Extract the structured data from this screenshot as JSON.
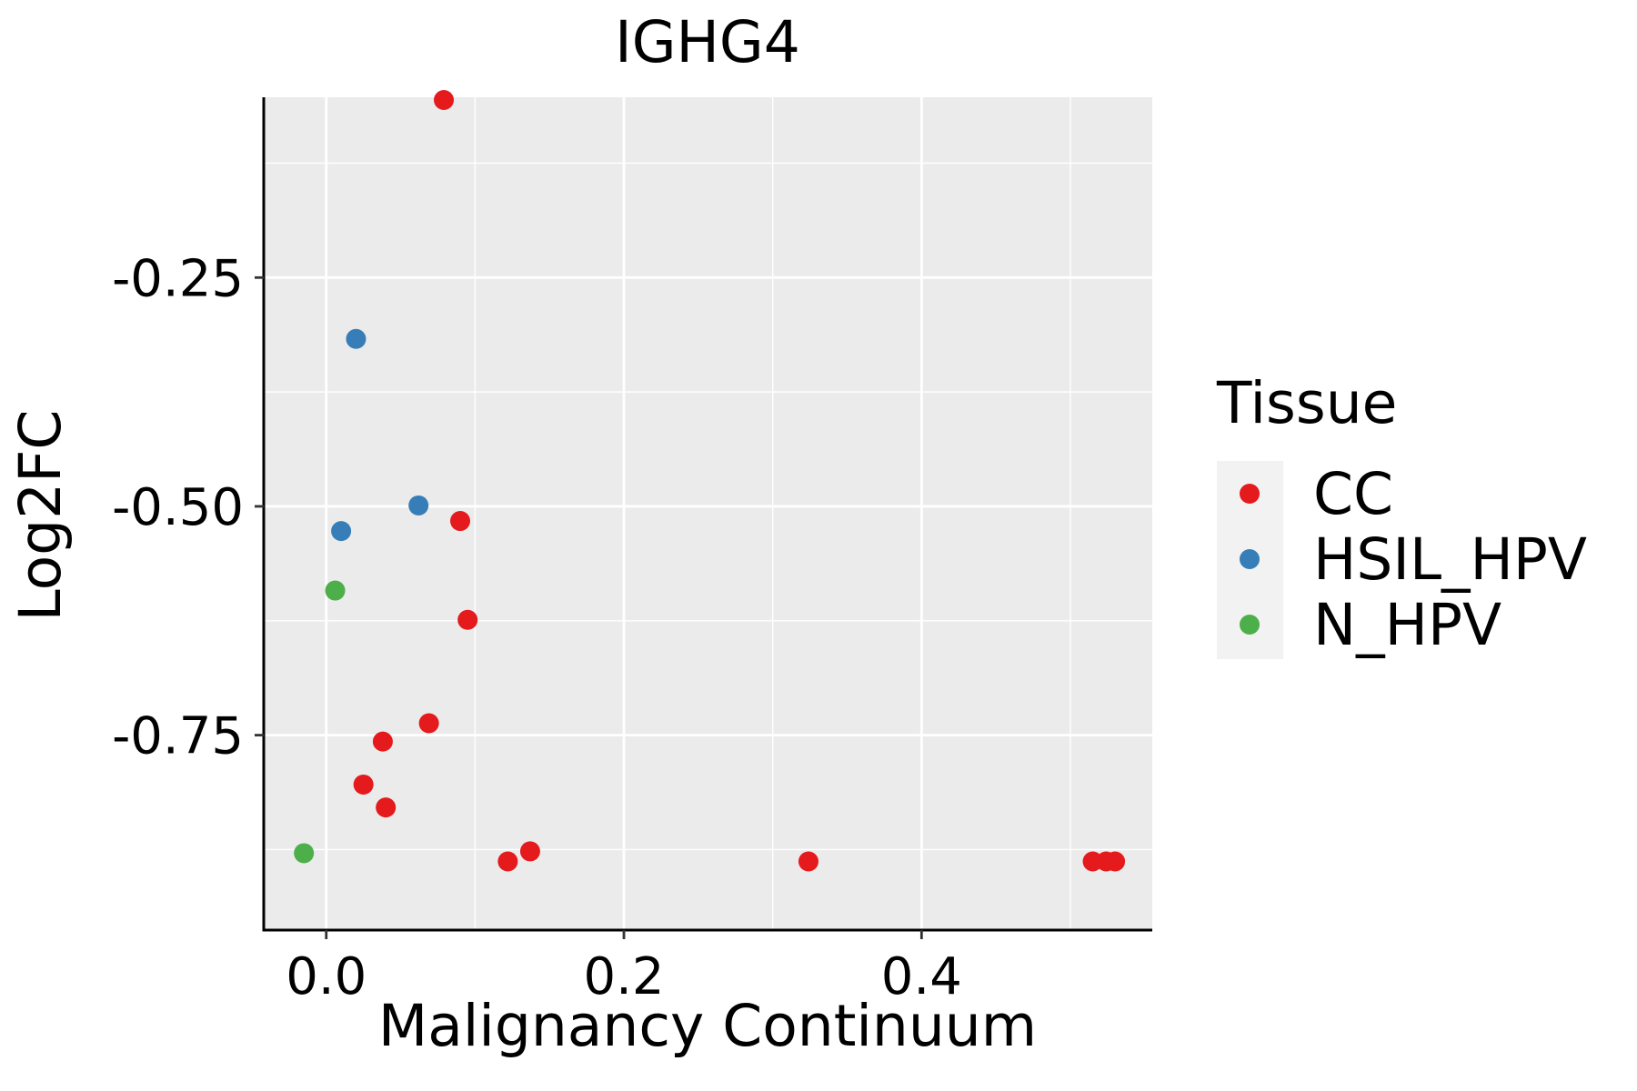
{
  "chart_data": {
    "type": "scatter",
    "title": "IGHG4",
    "xlabel": "Malignancy Continuum",
    "ylabel": "Log2FC",
    "xlim": [
      -0.042,
      0.555
    ],
    "ylim": [
      -0.963,
      -0.053
    ],
    "x_ticks": [
      0.0,
      0.2,
      0.4
    ],
    "x_tick_labels": [
      "0.0",
      "0.2",
      "0.4"
    ],
    "x_minor_ticks": [
      0.1,
      0.3,
      0.5
    ],
    "y_ticks": [
      -0.25,
      -0.5,
      -0.75
    ],
    "y_tick_labels": [
      "-0.25",
      "-0.50",
      "-0.75"
    ],
    "y_minor_ticks": [
      -0.125,
      -0.375,
      -0.625,
      -0.875
    ],
    "grid": true,
    "panel_background": "#EBEBEB",
    "grid_color": "#FFFFFF",
    "legend": {
      "title": "Tissue",
      "position": "right",
      "entries": [
        {
          "label": "CC",
          "color": "#E41A1C"
        },
        {
          "label": "HSIL_HPV",
          "color": "#377EB8"
        },
        {
          "label": "N_HPV",
          "color": "#4DAF4A"
        }
      ]
    },
    "series": [
      {
        "name": "CC",
        "color": "#E41A1C",
        "points": [
          {
            "x": 0.079,
            "y": -0.056
          },
          {
            "x": 0.09,
            "y": -0.516
          },
          {
            "x": 0.095,
            "y": -0.624
          },
          {
            "x": 0.069,
            "y": -0.737
          },
          {
            "x": 0.038,
            "y": -0.757
          },
          {
            "x": 0.025,
            "y": -0.804
          },
          {
            "x": 0.04,
            "y": -0.829
          },
          {
            "x": 0.122,
            "y": -0.888
          },
          {
            "x": 0.137,
            "y": -0.877
          },
          {
            "x": 0.324,
            "y": -0.888
          },
          {
            "x": 0.515,
            "y": -0.888
          },
          {
            "x": 0.524,
            "y": -0.888
          },
          {
            "x": 0.53,
            "y": -0.888
          }
        ]
      },
      {
        "name": "HSIL_HPV",
        "color": "#377EB8",
        "points": [
          {
            "x": 0.02,
            "y": -0.317
          },
          {
            "x": 0.062,
            "y": -0.499
          },
          {
            "x": 0.01,
            "y": -0.527
          }
        ]
      },
      {
        "name": "N_HPV",
        "color": "#4DAF4A",
        "points": [
          {
            "x": 0.006,
            "y": -0.592
          },
          {
            "x": -0.015,
            "y": -0.879
          }
        ]
      }
    ]
  }
}
